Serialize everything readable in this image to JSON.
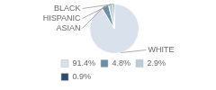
{
  "chart_data": {
    "type": "pie",
    "categories": [
      "WHITE",
      "ASIAN",
      "HISPANIC",
      "BLACK"
    ],
    "values": [
      91.4,
      4.8,
      2.9,
      0.9
    ],
    "value_labels": [
      "91.4%",
      "4.8%",
      "2.9%",
      "0.9%"
    ],
    "colors": [
      "#d9e2ec",
      "#6b8fa8",
      "#b8cdd8",
      "#2e4d6b"
    ],
    "legend": "lower left"
  }
}
